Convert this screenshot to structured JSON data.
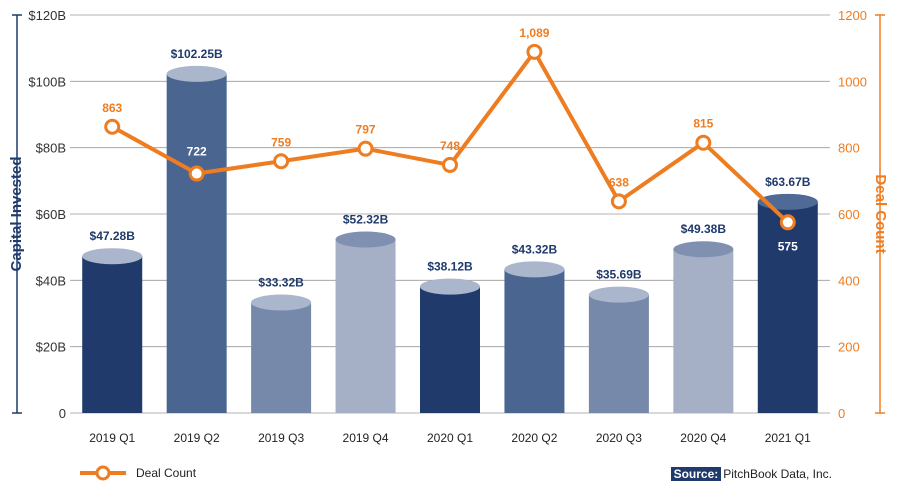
{
  "chart_data": {
    "type": "bar",
    "categories": [
      "2019 Q1",
      "2019 Q2",
      "2019 Q3",
      "2019 Q4",
      "2020 Q1",
      "2020 Q2",
      "2020 Q3",
      "2020 Q4",
      "2021 Q1"
    ],
    "series": [
      {
        "name": "",
        "type": "bar",
        "axis": "left",
        "values": [
          47.28,
          102.25,
          33.32,
          52.32,
          38.12,
          43.32,
          35.69,
          49.38,
          63.67
        ],
        "labels": [
          "$47.28B",
          "$102.25B",
          "$33.32B",
          "$52.32B",
          "$38.12B",
          "$43.32B",
          "$35.69B",
          "$49.38B",
          "$63.67B"
        ],
        "colors": [
          "#1f3a6b",
          "#4a6690",
          "#7689ab",
          "#a5b0c7",
          "#1f3a6b",
          "#4a6690",
          "#7689ab",
          "#a5b0c7",
          "#1f3a6b"
        ],
        "top_colors": [
          "#a9b6cc",
          "#a9b6cc",
          "#a9b6cc",
          "#7f90b0",
          "#a9b6cc",
          "#a9b6cc",
          "#a9b6cc",
          "#7f90b0",
          "#4f6a94"
        ]
      },
      {
        "name": "Deal Count",
        "type": "line",
        "axis": "right",
        "values": [
          863,
          722,
          759,
          797,
          748,
          1089,
          638,
          815,
          575
        ],
        "labels": [
          "863",
          "722",
          "759",
          "797",
          "748",
          "1,089",
          "638",
          "815",
          "575"
        ],
        "color": "#ee7d22"
      }
    ],
    "ylabel": "Capital Invested",
    "y2label": "Deal Count",
    "ylim": [
      0,
      120
    ],
    "y2lim": [
      0,
      1200
    ],
    "yticks": [
      "0",
      "$20B",
      "$40B",
      "$60B",
      "$80B",
      "$100B",
      "$120B"
    ],
    "y2ticks": [
      "0",
      "200",
      "400",
      "600",
      "800",
      "1000",
      "1200"
    ],
    "grid": true,
    "legend": "bottom-left",
    "left_axis_color": "#1f3a6b",
    "right_axis_color": "#ee7d22"
  },
  "legend": {
    "label": "Deal Count"
  },
  "source": {
    "label": "Source:",
    "text": "PitchBook Data, Inc."
  }
}
